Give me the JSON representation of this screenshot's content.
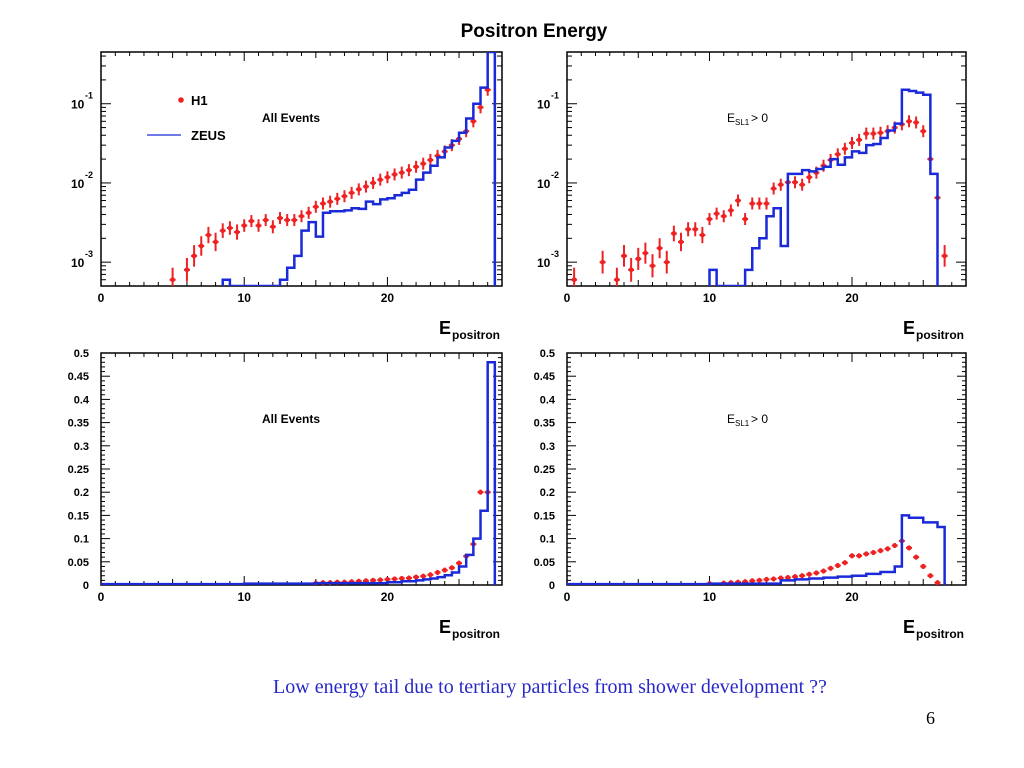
{
  "slide": {
    "title": "Positron Energy",
    "caption": "Low energy tail due to tertiary particles from shower development ??",
    "page_number": "6"
  },
  "colors": {
    "h1": "#ee2222",
    "zeus": "#1a2ad8",
    "frame": "#000000"
  },
  "chart_data": [
    {
      "type": "scatter+step",
      "panel": "top-left",
      "annotation": "All Events",
      "legend": {
        "position": "top-left",
        "entries": [
          {
            "marker": "dot",
            "label": "H1"
          },
          {
            "marker": "line",
            "label": "ZEUS"
          }
        ]
      },
      "xlabel_main": "E",
      "xlabel_sub": "positron",
      "xlim": [
        0,
        28
      ],
      "x_ticks": [
        "0",
        "10",
        "20"
      ],
      "ylog": true,
      "ylim": [
        0.0005,
        0.45
      ],
      "y_ticks": [
        {
          "base": "10",
          "exp": "-1"
        },
        {
          "base": "10",
          "exp": "-2"
        },
        {
          "base": "10",
          "exp": "-3"
        }
      ],
      "series": [
        {
          "name": "H1",
          "style": "points",
          "x": [
            5,
            6,
            6.5,
            7,
            7.5,
            8,
            8.5,
            9,
            9.5,
            10,
            10.5,
            11,
            11.5,
            12,
            12.5,
            13,
            13.5,
            14,
            14.5,
            15,
            15.5,
            16,
            16.5,
            17,
            17.5,
            18,
            18.5,
            19,
            19.5,
            20,
            20.5,
            21,
            21.5,
            22,
            22.5,
            23,
            23.5,
            24,
            24.5,
            25,
            25.5,
            26,
            26.5,
            27
          ],
          "y": [
            0.0006,
            0.0008,
            0.0012,
            0.0016,
            0.0022,
            0.0018,
            0.0025,
            0.0027,
            0.0024,
            0.0029,
            0.0033,
            0.0029,
            0.0034,
            0.0028,
            0.0036,
            0.0034,
            0.0034,
            0.0038,
            0.0042,
            0.005,
            0.0055,
            0.0058,
            0.0063,
            0.0068,
            0.0075,
            0.0083,
            0.009,
            0.01,
            0.011,
            0.0118,
            0.0128,
            0.0135,
            0.0145,
            0.016,
            0.0175,
            0.0195,
            0.022,
            0.025,
            0.03,
            0.036,
            0.045,
            0.06,
            0.09,
            0.15
          ]
        },
        {
          "name": "ZEUS",
          "style": "step",
          "edges": [
            8.5,
            9,
            12.5,
            13,
            13.5,
            14,
            14.5,
            15,
            15.5,
            16,
            16.5,
            17,
            17.5,
            18,
            18.5,
            19,
            19.5,
            20,
            20.5,
            21,
            21.5,
            22,
            22.5,
            23,
            23.5,
            24,
            24.5,
            25,
            25.5,
            26,
            26.5,
            27,
            27.5
          ],
          "values": [
            0.0006,
            0.0004,
            0.0006,
            0.00085,
            0.0012,
            0.0025,
            0.0032,
            0.0021,
            0.0042,
            0.0044,
            0.0044,
            0.0045,
            0.0048,
            0.0047,
            0.0058,
            0.0054,
            0.0062,
            0.0064,
            0.007,
            0.0075,
            0.0082,
            0.011,
            0.0135,
            0.0165,
            0.021,
            0.028,
            0.034,
            0.043,
            0.065,
            0.1,
            0.16,
            0.45
          ]
        }
      ]
    },
    {
      "type": "scatter+step",
      "panel": "top-right",
      "annotation_main": "E",
      "annotation_sub": "SL1",
      "annotation_rest": " > 0",
      "xlabel_main": "E",
      "xlabel_sub": "positron",
      "xlim": [
        0,
        28
      ],
      "x_ticks": [
        "0",
        "10",
        "20"
      ],
      "ylog": true,
      "ylim": [
        0.0005,
        0.45
      ],
      "y_ticks": [
        {
          "base": "10",
          "exp": "-1"
        },
        {
          "base": "10",
          "exp": "-2"
        },
        {
          "base": "10",
          "exp": "-3"
        }
      ],
      "series": [
        {
          "name": "H1",
          "style": "points",
          "x": [
            0.5,
            2.5,
            3.5,
            4,
            4.5,
            5,
            5.5,
            6,
            6.5,
            7,
            7.5,
            8,
            8.5,
            9,
            9.5,
            10,
            10.5,
            11,
            11.5,
            12,
            12.5,
            13,
            13.5,
            14,
            14.5,
            15,
            15.5,
            16,
            16.5,
            17,
            17.5,
            18,
            18.5,
            19,
            19.5,
            20,
            20.5,
            21,
            21.5,
            22,
            22.5,
            23,
            23.5,
            24,
            24.5,
            25,
            25.5,
            26,
            26.5
          ],
          "y": [
            0.0006,
            0.001,
            0.0006,
            0.0012,
            0.0008,
            0.0011,
            0.0013,
            0.0009,
            0.0015,
            0.001,
            0.0023,
            0.0018,
            0.0026,
            0.0026,
            0.0022,
            0.0035,
            0.0041,
            0.0038,
            0.0045,
            0.006,
            0.0035,
            0.0055,
            0.0055,
            0.0055,
            0.0085,
            0.0095,
            0.0102,
            0.0102,
            0.0095,
            0.0118,
            0.0135,
            0.0165,
            0.0195,
            0.023,
            0.027,
            0.032,
            0.035,
            0.042,
            0.042,
            0.043,
            0.045,
            0.05,
            0.055,
            0.06,
            0.058,
            0.045,
            0.02,
            0.0065,
            0.0012
          ]
        },
        {
          "name": "ZEUS",
          "style": "step",
          "edges": [
            10,
            10.5,
            12.5,
            13,
            13.5,
            14,
            14.5,
            15,
            15.5,
            16,
            16.5,
            17,
            17.5,
            18,
            18.5,
            19,
            19.5,
            20,
            20.5,
            21,
            21.5,
            22,
            22.5,
            23,
            23.5,
            24,
            24.5,
            25,
            25.5,
            26
          ],
          "values": [
            0.0008,
            0.0004,
            0.0008,
            0.0015,
            0.002,
            0.0038,
            0.0048,
            0.0016,
            0.013,
            0.013,
            0.0145,
            0.014,
            0.015,
            0.016,
            0.02,
            0.017,
            0.021,
            0.025,
            0.024,
            0.03,
            0.031,
            0.037,
            0.046,
            0.056,
            0.15,
            0.145,
            0.138,
            0.13,
            0.013
          ]
        }
      ]
    },
    {
      "type": "scatter+step",
      "panel": "bottom-left",
      "annotation": "All Events",
      "xlabel_main": "E",
      "xlabel_sub": "positron",
      "xlim": [
        0,
        28
      ],
      "x_ticks": [
        "0",
        "10",
        "20"
      ],
      "ylog": false,
      "ylim": [
        0,
        0.5
      ],
      "y_ticks": [
        "0",
        "0.05",
        "0.1",
        "0.15",
        "0.2",
        "0.25",
        "0.3",
        "0.35",
        "0.4",
        "0.45",
        "0.5"
      ],
      "series": [
        {
          "name": "H1",
          "style": "points",
          "x": [
            15,
            15.5,
            16,
            16.5,
            17,
            17.5,
            18,
            18.5,
            19,
            19.5,
            20,
            20.5,
            21,
            21.5,
            22,
            22.5,
            23,
            23.5,
            24,
            24.5,
            25,
            25.5,
            26,
            26.5,
            27
          ],
          "y": [
            0.004,
            0.005,
            0.005,
            0.006,
            0.006,
            0.007,
            0.008,
            0.009,
            0.01,
            0.011,
            0.012,
            0.013,
            0.014,
            0.015,
            0.017,
            0.019,
            0.022,
            0.027,
            0.032,
            0.037,
            0.047,
            0.062,
            0.088,
            0.2,
            0.2
          ]
        },
        {
          "name": "ZEUS",
          "style": "step",
          "edges": [
            0,
            10,
            15,
            20,
            21,
            22,
            22.5,
            23,
            23.5,
            24,
            24.5,
            25,
            25.5,
            26,
            26.5,
            27,
            27.5
          ],
          "values": [
            0.002,
            0.003,
            0.004,
            0.006,
            0.008,
            0.01,
            0.012,
            0.014,
            0.017,
            0.021,
            0.027,
            0.04,
            0.065,
            0.1,
            0.16,
            0.48
          ]
        }
      ]
    },
    {
      "type": "scatter+step",
      "panel": "bottom-right",
      "annotation_main": "E",
      "annotation_sub": "SL1",
      "annotation_rest": " > 0",
      "xlabel_main": "E",
      "xlabel_sub": "positron",
      "xlim": [
        0,
        28
      ],
      "x_ticks": [
        "0",
        "10",
        "20"
      ],
      "ylog": false,
      "ylim": [
        0,
        0.5
      ],
      "y_ticks": [
        "0",
        "0.05",
        "0.1",
        "0.15",
        "0.2",
        "0.25",
        "0.3",
        "0.35",
        "0.4",
        "0.45",
        "0.5"
      ],
      "series": [
        {
          "name": "H1",
          "style": "points",
          "x": [
            10,
            11,
            11.5,
            12,
            12.5,
            13,
            13.5,
            14,
            14.5,
            15,
            15.5,
            16,
            16.5,
            17,
            17.5,
            18,
            18.5,
            19,
            19.5,
            20,
            20.5,
            21,
            21.5,
            22,
            22.5,
            23,
            23.5,
            24,
            24.5,
            25,
            25.5,
            26
          ],
          "y": [
            0.003,
            0.004,
            0.005,
            0.006,
            0.007,
            0.009,
            0.01,
            0.012,
            0.013,
            0.015,
            0.016,
            0.018,
            0.02,
            0.023,
            0.026,
            0.03,
            0.036,
            0.042,
            0.048,
            0.063,
            0.063,
            0.067,
            0.07,
            0.074,
            0.078,
            0.085,
            0.095,
            0.08,
            0.06,
            0.04,
            0.02,
            0.005
          ]
        },
        {
          "name": "ZEUS",
          "style": "step",
          "edges": [
            0,
            10,
            15,
            16,
            17,
            18,
            19,
            20,
            21,
            22,
            23,
            23.5,
            24,
            25,
            26,
            26.5
          ],
          "values": [
            0.002,
            0.003,
            0.01,
            0.012,
            0.014,
            0.016,
            0.018,
            0.02,
            0.024,
            0.028,
            0.04,
            0.15,
            0.145,
            0.135,
            0.125
          ]
        }
      ]
    }
  ]
}
